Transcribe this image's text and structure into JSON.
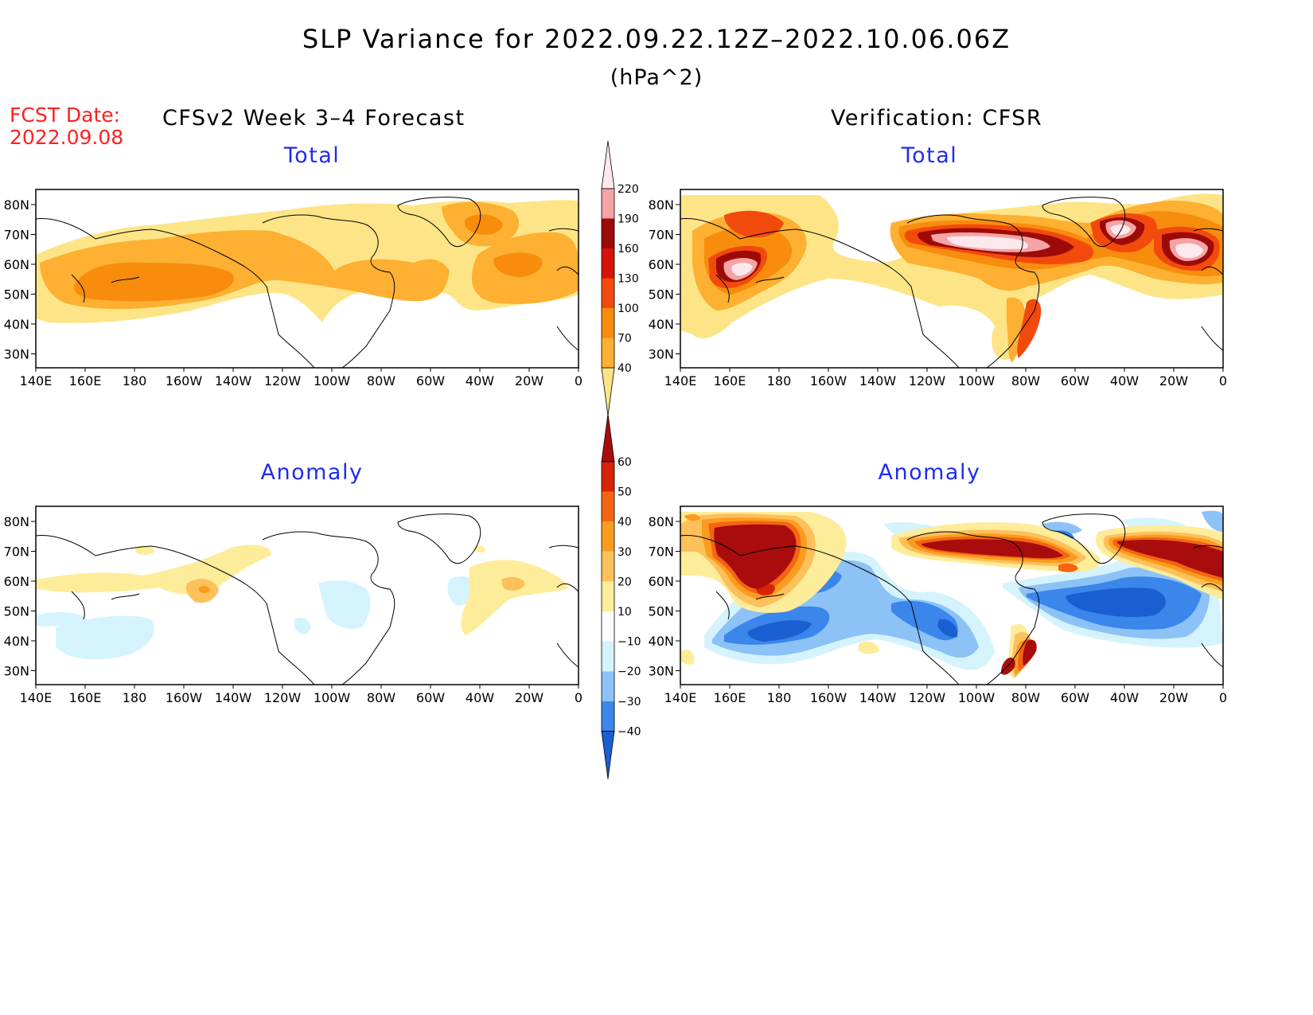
{
  "title": "SLP Variance for 2022.09.22.12Z–2022.10.06.06Z",
  "units": "(hPa^2)",
  "fcst_date": {
    "label": "FCST Date:",
    "value": "2022.09.08"
  },
  "left_heading": "CFSv2 Week 3–4 Forecast",
  "right_heading": "Verification: CFSR",
  "lat_labels": [
    "80N",
    "70N",
    "60N",
    "50N",
    "40N",
    "30N"
  ],
  "lon_labels": [
    "140E",
    "160E",
    "180",
    "160W",
    "140W",
    "120W",
    "100W",
    "80W",
    "60W",
    "40W",
    "20W",
    "0"
  ],
  "panels": [
    {
      "id": "fcst-total",
      "title": "Total",
      "kind": "total"
    },
    {
      "id": "verif-total",
      "title": "Total",
      "kind": "total"
    },
    {
      "id": "fcst-anomaly",
      "title": "Anomaly",
      "kind": "anomaly"
    },
    {
      "id": "verif-anomaly",
      "title": "Anomaly",
      "kind": "anomaly"
    }
  ],
  "colorbar_total": {
    "levels": [
      "40",
      "70",
      "100",
      "130",
      "160",
      "190",
      "220"
    ],
    "colors": [
      "#fde587",
      "#fdb031",
      "#f88c0d",
      "#f24a0c",
      "#d41408",
      "#9d0a08",
      "#f4a4a4",
      "#fde8ee"
    ]
  },
  "colorbar_anomaly": {
    "levels": [
      "−40",
      "−30",
      "−20",
      "−10",
      "10",
      "20",
      "30",
      "40",
      "50",
      "60"
    ],
    "colors": [
      "#1a5fd1",
      "#3a86ea",
      "#8cc2f6",
      "#d5f3fd",
      "#ffffff",
      "#fdec9a",
      "#fdc05a",
      "#fb9c1e",
      "#f46412",
      "#d92308",
      "#a80c0c"
    ]
  }
}
